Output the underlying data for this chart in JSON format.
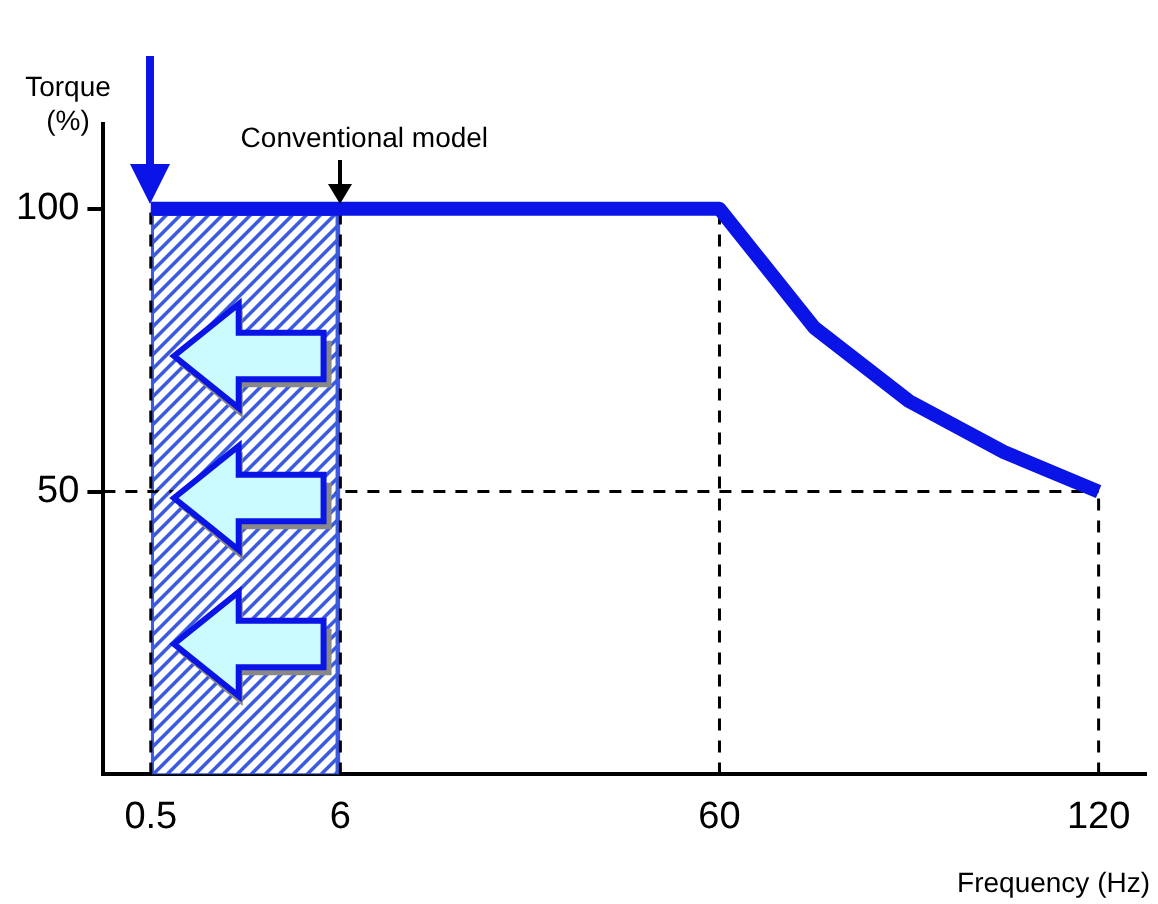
{
  "chart_data": {
    "type": "line",
    "xlabel": "Frequency (Hz)",
    "ylabel": "Torque\n(%)",
    "categories": [
      "0.5",
      null,
      "6",
      null,
      null,
      null,
      "60",
      null,
      null,
      null,
      "120"
    ],
    "values": [
      100,
      100,
      100,
      100,
      100,
      100,
      100,
      79,
      66,
      57,
      50
    ],
    "color": "#0a14e6",
    "ylim": [
      0,
      115
    ],
    "yticks": [
      50,
      100
    ],
    "grid": false,
    "legend": false,
    "marker": "none",
    "line_style": "solid",
    "ref_lines": [
      {
        "axis": "x",
        "value": "0.5",
        "line_style": "dashed",
        "color": "#000000"
      },
      {
        "axis": "x",
        "value": "6",
        "line_style": "dashed",
        "color": "#000000"
      },
      {
        "axis": "x",
        "value": "60",
        "line_style": "dashed",
        "color": "#000000"
      },
      {
        "axis": "x",
        "value": "120",
        "line_style": "dashed",
        "color": "#000000"
      },
      {
        "axis": "y",
        "value": 50,
        "line_style": "dashed",
        "color": "#000000"
      }
    ],
    "bands": [
      {
        "axis": "x",
        "from": "0.5",
        "to": "6",
        "color": "#3a5ae0"
      }
    ],
    "annotations": [
      {
        "text": "Conventional model",
        "x": "6",
        "y": 100
      }
    ]
  }
}
